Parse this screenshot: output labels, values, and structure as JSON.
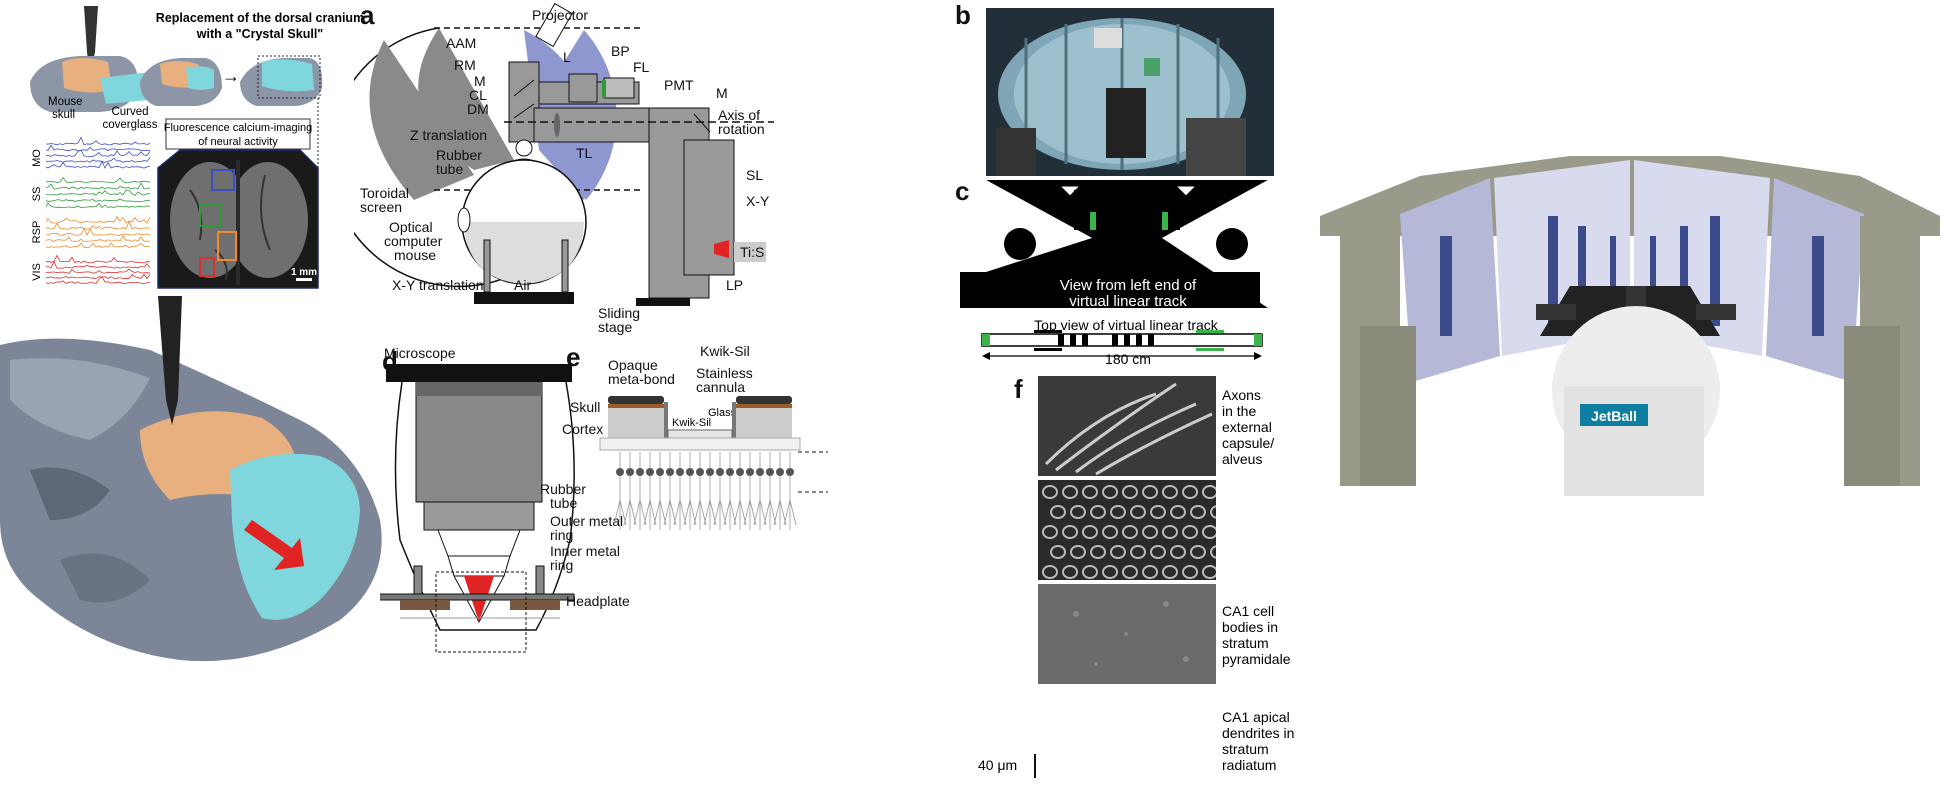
{
  "left": {
    "title_line1": "Replacement of the dorsal cranium",
    "title_line2": "with a \"Crystal Skull\"",
    "mouse_skull_l1": "Mouse",
    "mouse_skull_l2": "skull",
    "coverglass_l1": "Curved",
    "coverglass_l2": "coverglass",
    "imaging_l1": "Fluorescence calcium-imaging",
    "imaging_l2": "of neural activity",
    "trace_labels": [
      "MO",
      "SS",
      "RSP",
      "VIS"
    ],
    "scale_bar": "1 mm"
  },
  "panel_a": {
    "letter": "a",
    "labels": {
      "projector": "Projector",
      "aam": "AAM",
      "rm": "RM",
      "m1": "M",
      "cl": "CL",
      "dm": "DM",
      "l": "L",
      "bp": "BP",
      "fl": "FL",
      "pmt": "PMT",
      "m2": "M",
      "axis_l1": "Axis of",
      "axis_l2": "rotation",
      "ztrans": "Z translation",
      "rubber_l1": "Rubber",
      "rubber_l2": "tube",
      "tl": "TL",
      "toroidal_l1": "Toroidal",
      "toroidal_l2": "screen",
      "optical_l1": "Optical",
      "optical_l2": "computer",
      "optical_l3": "mouse",
      "sl": "SL",
      "xy": "X-Y",
      "tis": "Ti:S",
      "lp": "LP",
      "xytrans": "X-Y translation",
      "air": "Air",
      "sliding_l1": "Sliding",
      "sliding_l2": "stage"
    }
  },
  "panel_b": {
    "letter": "b"
  },
  "panel_c": {
    "letter": "c",
    "view_l1": "View from left end of",
    "view_l2": "virtual linear track",
    "topview": "Top view of virtual linear track",
    "length": "180 cm"
  },
  "panel_d": {
    "letter": "d",
    "microscope": "Microscope",
    "rubber_l1": "Rubber",
    "rubber_l2": "tube",
    "outer_l1": "Outer metal",
    "outer_l2": "ring",
    "inner_l1": "Inner metal",
    "inner_l2": "ring",
    "headplate": "Headplate"
  },
  "panel_e": {
    "letter": "e",
    "kwiksil": "Kwik-Sil",
    "opaque_l1": "Opaque",
    "opaque_l2": "meta-bond",
    "skull": "Skull",
    "stainless_l1": "Stainless",
    "stainless_l2": "cannula",
    "cortex": "Cortex",
    "glass": "Glass",
    "kwiksil_small": "Kwik-Sil"
  },
  "panel_f": {
    "letter": "f",
    "rows": [
      [
        "Axons",
        "in the",
        "external",
        "capsule/",
        "alveus"
      ],
      [
        "CA1 cell",
        "bodies in",
        "stratum",
        "pyramidale"
      ],
      [
        "CA1 apical",
        "dendrites in",
        "stratum",
        "radiatum"
      ]
    ],
    "scale": "40 μm"
  },
  "right": {
    "brand": "JetBall"
  },
  "colors": {
    "skull_orange": "#E8B07F",
    "coverglass_cyan": "#7FD6DC",
    "skull_gray": "#8C96A6",
    "screen_blue": "#8E97CF",
    "trace_blue": "#3B4FC4",
    "trace_green": "#2E9A3A",
    "trace_orange": "#F08A2A",
    "trace_red": "#D93030",
    "laser_red": "#E02424",
    "track_green": "#3BB54A"
  }
}
